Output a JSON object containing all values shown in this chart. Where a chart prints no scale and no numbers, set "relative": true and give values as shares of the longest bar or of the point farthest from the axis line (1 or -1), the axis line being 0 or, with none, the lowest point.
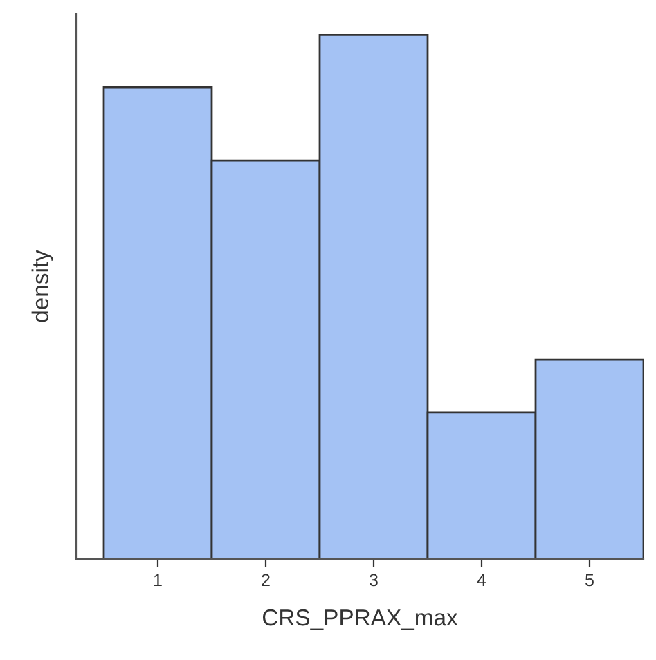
{
  "chart_data": {
    "type": "bar",
    "xlabel": "CRS_PPRAX_max",
    "ylabel": "density",
    "relative": true,
    "categories": [
      "1",
      "2",
      "3",
      "4",
      "5"
    ],
    "values": [
      0.9,
      0.76,
      1,
      0.28,
      0.38
    ],
    "color": "#a4c2f4",
    "grid": false,
    "legend": false
  }
}
